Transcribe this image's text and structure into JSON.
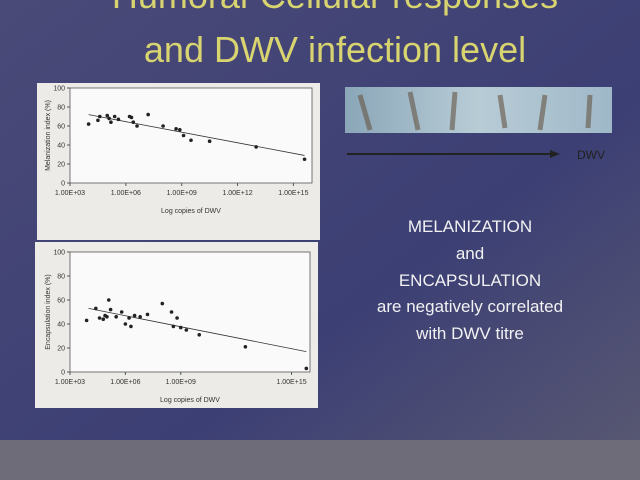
{
  "slide": {
    "title": [
      "Humoral-Cellular responses",
      "and DWV infection level"
    ],
    "arrow_label": "DWV",
    "message": [
      "MELANIZATION",
      "and",
      "ENCAPSULATION",
      "are negatively correlated",
      "with DWV titre"
    ]
  },
  "chart_data": [
    {
      "type": "scatter",
      "xlabel": "Log copies of DWV",
      "ylabel": "Melanization index (%)",
      "xscale": "log",
      "color": "#222222",
      "x": [
        10000.0,
        31600.0,
        39800.0,
        100000.0,
        126000.0,
        158000.0,
        251000.0,
        398000.0,
        1580000.0,
        2000000.0,
        2510000.0,
        3980000.0,
        15800000.0,
        100000000.0,
        500000000.0,
        794000000.0,
        1260000000.0,
        3160000000.0,
        31600000000.0,
        10000000000000.0,
        3980000000000000.0
      ],
      "values": [
        62,
        66,
        70,
        71,
        68,
        64,
        70,
        67,
        70,
        69,
        64,
        60,
        72,
        60,
        57,
        56,
        50,
        45,
        44,
        38,
        25
      ],
      "trendline": {
        "x": [
          10000.0,
          3980000000000000.0
        ],
        "y": [
          72,
          29
        ]
      },
      "xlim": [
        1000,
        1e+16
      ],
      "ylim": [
        0,
        100
      ],
      "xticks": [
        {
          "value": 1000,
          "label": "1.00E+03"
        },
        {
          "value": 1000000.0,
          "label": "1.00E+06"
        },
        {
          "value": 1000000000.0,
          "label": "1.00E+09"
        },
        {
          "value": 1000000000000.0,
          "label": "1.00E+12"
        },
        {
          "value": 1000000000000000.0,
          "label": "1.00E+15"
        }
      ],
      "yticks": [
        0,
        20,
        40,
        60,
        80,
        100
      ]
    },
    {
      "type": "scatter",
      "xlabel": "Log copies of DWV",
      "ylabel": "Encapsulation index (%)",
      "xscale": "log",
      "color": "#222222",
      "x": [
        7940.0,
        25100.0,
        39800.0,
        63100.0,
        79400.0,
        100000.0,
        126000.0,
        158000.0,
        316000.0,
        631000.0,
        1000000.0,
        1580000.0,
        2000000.0,
        3160000.0,
        6310000.0,
        15800000.0,
        100000000.0,
        316000000.0,
        398000000.0,
        631000000.0,
        1000000000.0,
        2000000000.0,
        10000000000.0,
        3160000000000.0,
        6310000000000000.0
      ],
      "values": [
        43,
        53,
        45,
        44,
        47,
        46,
        60,
        52,
        46,
        50,
        40,
        45,
        38,
        47,
        46,
        48,
        57,
        50,
        38,
        45,
        37,
        35,
        31,
        21,
        3
      ],
      "trendline": {
        "x": [
          10000.0,
          6310000000000000.0
        ],
        "y": [
          53,
          17
        ]
      },
      "xlim": [
        1000,
        1e+16
      ],
      "ylim": [
        0,
        100
      ],
      "xticks": [
        {
          "value": 1000,
          "label": "1.00E+03"
        },
        {
          "value": 1000000.0,
          "label": "1.00E+06"
        },
        {
          "value": 1000000000.0,
          "label": "1.00E+09"
        },
        {
          "value": 1000000000000000.0,
          "label": "1.00E+15"
        }
      ],
      "yticks": [
        0,
        20,
        40,
        60,
        80,
        100
      ]
    }
  ]
}
